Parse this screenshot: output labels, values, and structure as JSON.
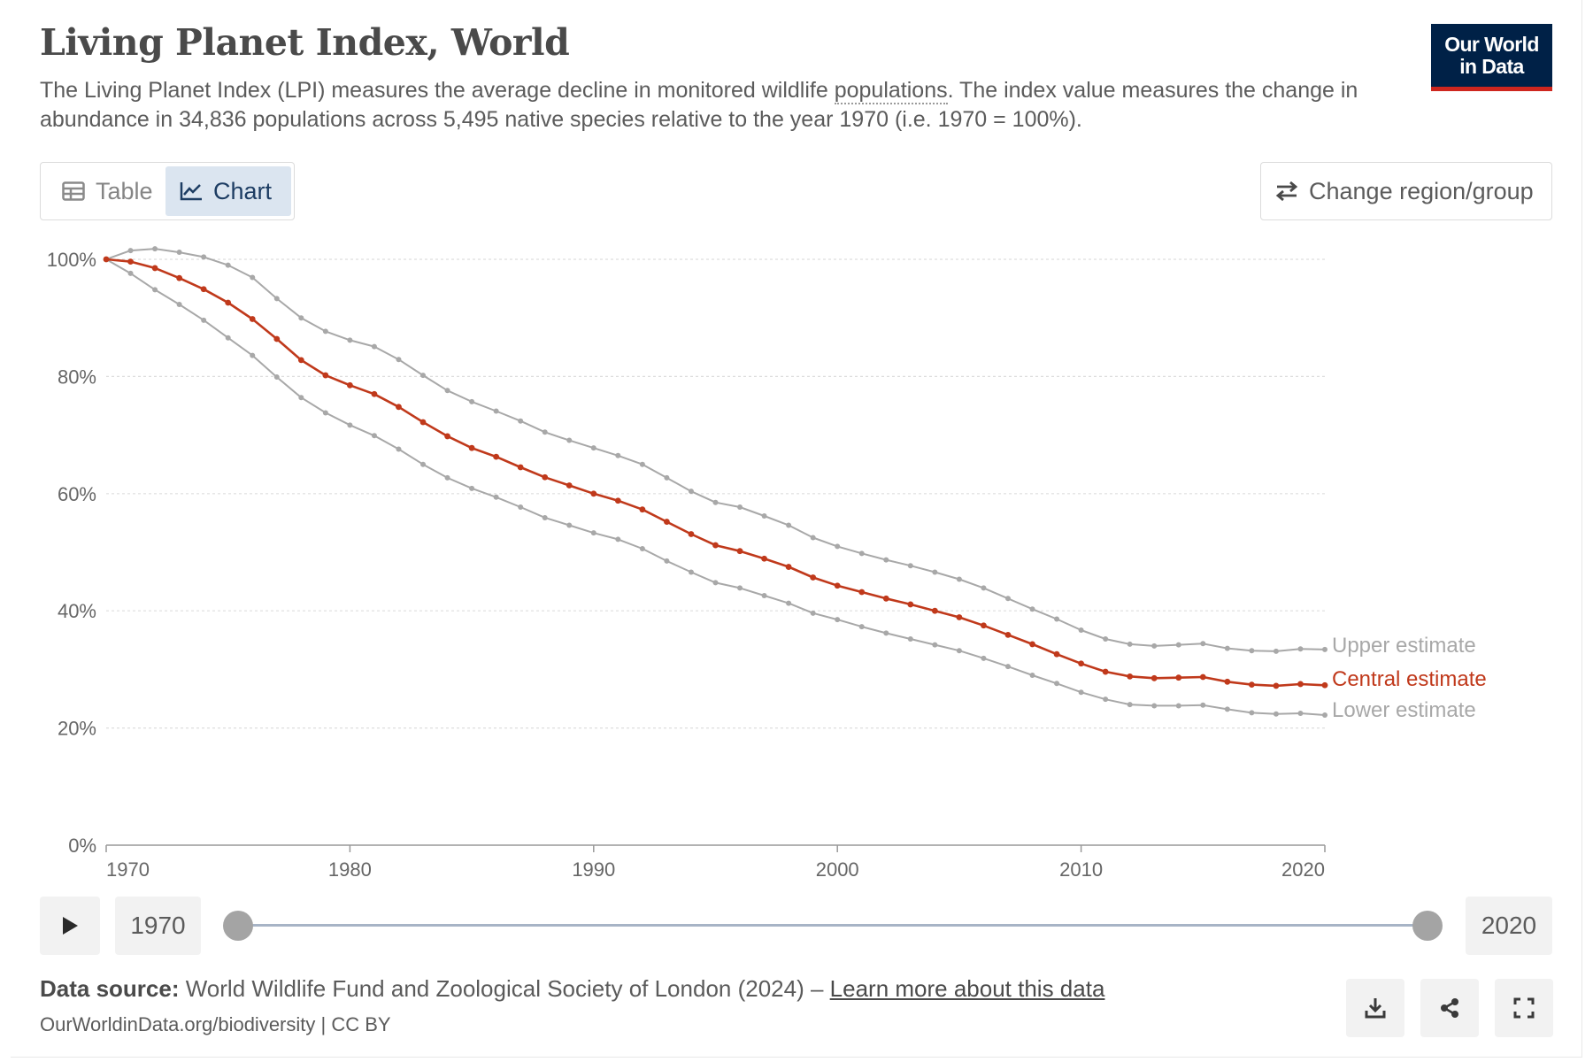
{
  "header": {
    "title": "Living Planet Index, World",
    "subtitle_pre": "The Living Planet Index (LPI) measures the average decline in monitored wildlife ",
    "subtitle_link": "populations",
    "subtitle_post": ". The index value measures the change in abundance in 34,836 populations across 5,495 native species relative to the year 1970 (i.e. 1970 = 100%).",
    "logo_line1": "Our World",
    "logo_line2": "in Data"
  },
  "tabs": [
    {
      "label": "Table",
      "icon": "table-icon",
      "active": false
    },
    {
      "label": "Chart",
      "icon": "line-chart-icon",
      "active": true
    }
  ],
  "change_region_label": "Change region/group",
  "timeline": {
    "start_year": "1970",
    "end_year": "2020",
    "play_icon": "play-icon"
  },
  "footer": {
    "source_label": "Data source:",
    "source_text": " World Wildlife Fund and Zoological Society of London (2024) – ",
    "learn_more": "Learn more about this data",
    "url": "OurWorldinData.org/biodiversity | CC BY",
    "icons": [
      "download-icon",
      "share-icon",
      "fullscreen-icon"
    ]
  },
  "chart_data": {
    "type": "line",
    "title": "Living Planet Index, World",
    "xlim": [
      1970,
      2020
    ],
    "ylim": [
      0,
      100
    ],
    "y_ticks": [
      0,
      20,
      40,
      60,
      80,
      100
    ],
    "y_tick_labels": [
      "0%",
      "20%",
      "40%",
      "60%",
      "80%",
      "100%"
    ],
    "x_ticks": [
      1970,
      1980,
      1990,
      2000,
      2010,
      2020
    ],
    "x_tick_labels": [
      "1970",
      "1980",
      "1990",
      "2000",
      "2010",
      "2020"
    ],
    "grid": true,
    "legend_placement": "right-end-labels",
    "x": [
      1970,
      1971,
      1972,
      1973,
      1974,
      1975,
      1976,
      1977,
      1978,
      1979,
      1980,
      1981,
      1982,
      1983,
      1984,
      1985,
      1986,
      1987,
      1988,
      1989,
      1990,
      1991,
      1992,
      1993,
      1994,
      1995,
      1996,
      1997,
      1998,
      1999,
      2000,
      2001,
      2002,
      2003,
      2004,
      2005,
      2006,
      2007,
      2008,
      2009,
      2010,
      2011,
      2012,
      2013,
      2014,
      2015,
      2016,
      2017,
      2018,
      2019,
      2020
    ],
    "series": [
      {
        "name": "Upper estimate",
        "color": "#a8a8a8",
        "values": [
          100,
          101.5,
          101.8,
          101.2,
          100.4,
          99.0,
          96.9,
          93.3,
          90.0,
          87.7,
          86.2,
          85.1,
          82.9,
          80.2,
          77.6,
          75.7,
          74.1,
          72.4,
          70.5,
          69.1,
          67.8,
          66.5,
          65.0,
          62.7,
          60.4,
          58.5,
          57.7,
          56.2,
          54.6,
          52.5,
          51.0,
          49.8,
          48.7,
          47.7,
          46.6,
          45.4,
          43.9,
          42.1,
          40.3,
          38.6,
          36.7,
          35.2,
          34.3,
          34.0,
          34.2,
          34.4,
          33.6,
          33.2,
          33.1,
          33.5,
          33.4
        ]
      },
      {
        "name": "Central estimate",
        "color": "#c0391b",
        "values": [
          100,
          99.6,
          98.5,
          96.8,
          94.9,
          92.6,
          89.8,
          86.4,
          82.8,
          80.2,
          78.5,
          77.0,
          74.8,
          72.2,
          69.8,
          67.8,
          66.3,
          64.5,
          62.8,
          61.4,
          60.0,
          58.8,
          57.3,
          55.2,
          53.1,
          51.2,
          50.2,
          48.9,
          47.5,
          45.7,
          44.3,
          43.2,
          42.1,
          41.1,
          40.0,
          38.9,
          37.5,
          35.9,
          34.3,
          32.6,
          31.0,
          29.6,
          28.8,
          28.5,
          28.6,
          28.7,
          27.9,
          27.4,
          27.2,
          27.5,
          27.3
        ]
      },
      {
        "name": "Lower estimate",
        "color": "#a8a8a8",
        "values": [
          100,
          97.6,
          94.8,
          92.3,
          89.6,
          86.6,
          83.6,
          79.9,
          76.4,
          73.8,
          71.7,
          69.9,
          67.6,
          65.0,
          62.7,
          60.9,
          59.4,
          57.7,
          55.9,
          54.6,
          53.3,
          52.2,
          50.6,
          48.5,
          46.6,
          44.8,
          43.9,
          42.6,
          41.3,
          39.6,
          38.5,
          37.3,
          36.2,
          35.2,
          34.2,
          33.2,
          31.9,
          30.5,
          29.0,
          27.6,
          26.1,
          24.9,
          24.0,
          23.8,
          23.8,
          23.9,
          23.2,
          22.6,
          22.4,
          22.5,
          22.2
        ]
      }
    ]
  }
}
